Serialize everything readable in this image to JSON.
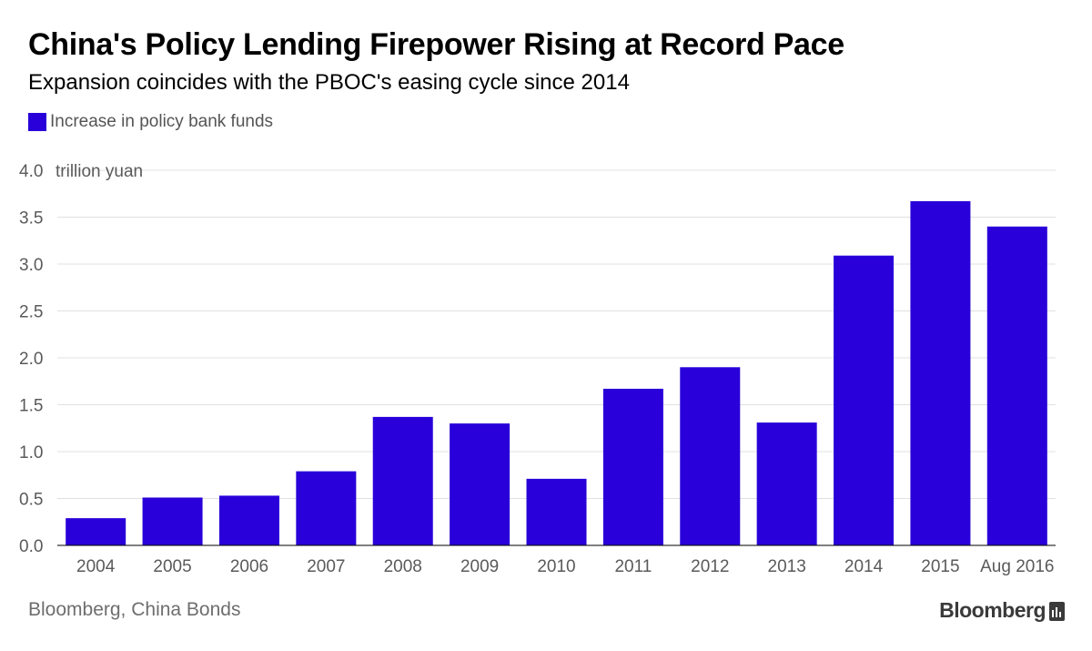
{
  "header": {
    "title": "China's Policy Lending Firepower Rising at Record Pace",
    "subtitle": "Expansion coincides with the PBOC's easing cycle since 2014"
  },
  "footer": {
    "source": "Bloomberg, China Bonds",
    "brand": "Bloomberg",
    "brand_icon": "bloomberg-terminal-icon"
  },
  "colors": {
    "bar": "#2900d9",
    "grid": "#e0e0e0",
    "axis": "#000000",
    "tick_text": "#5a5a5a"
  },
  "chart_data": {
    "type": "bar",
    "title": "China's Policy Lending Firepower Rising at Record Pace",
    "subtitle": "Expansion coincides with the PBOC's easing cycle since 2014",
    "ylabel": "trillion yuan",
    "xlabel": "",
    "ylim": [
      0,
      4.0
    ],
    "yticks": [
      0.0,
      0.5,
      1.0,
      1.5,
      2.0,
      2.5,
      3.0,
      3.5,
      4.0
    ],
    "ytick_labels": [
      "0.0",
      "0.5",
      "1.0",
      "1.5",
      "2.0",
      "2.5",
      "3.0",
      "3.5",
      "4.0"
    ],
    "grid": true,
    "legend_position": "top-left",
    "categories": [
      "2004",
      "2005",
      "2006",
      "2007",
      "2008",
      "2009",
      "2010",
      "2011",
      "2012",
      "2013",
      "2014",
      "2015",
      "Aug 2016"
    ],
    "series": [
      {
        "name": "Increase in policy bank funds",
        "color": "#2900d9",
        "values": [
          0.29,
          0.51,
          0.53,
          0.79,
          1.37,
          1.3,
          0.71,
          1.67,
          1.9,
          1.31,
          3.09,
          3.67,
          3.4
        ]
      }
    ]
  }
}
